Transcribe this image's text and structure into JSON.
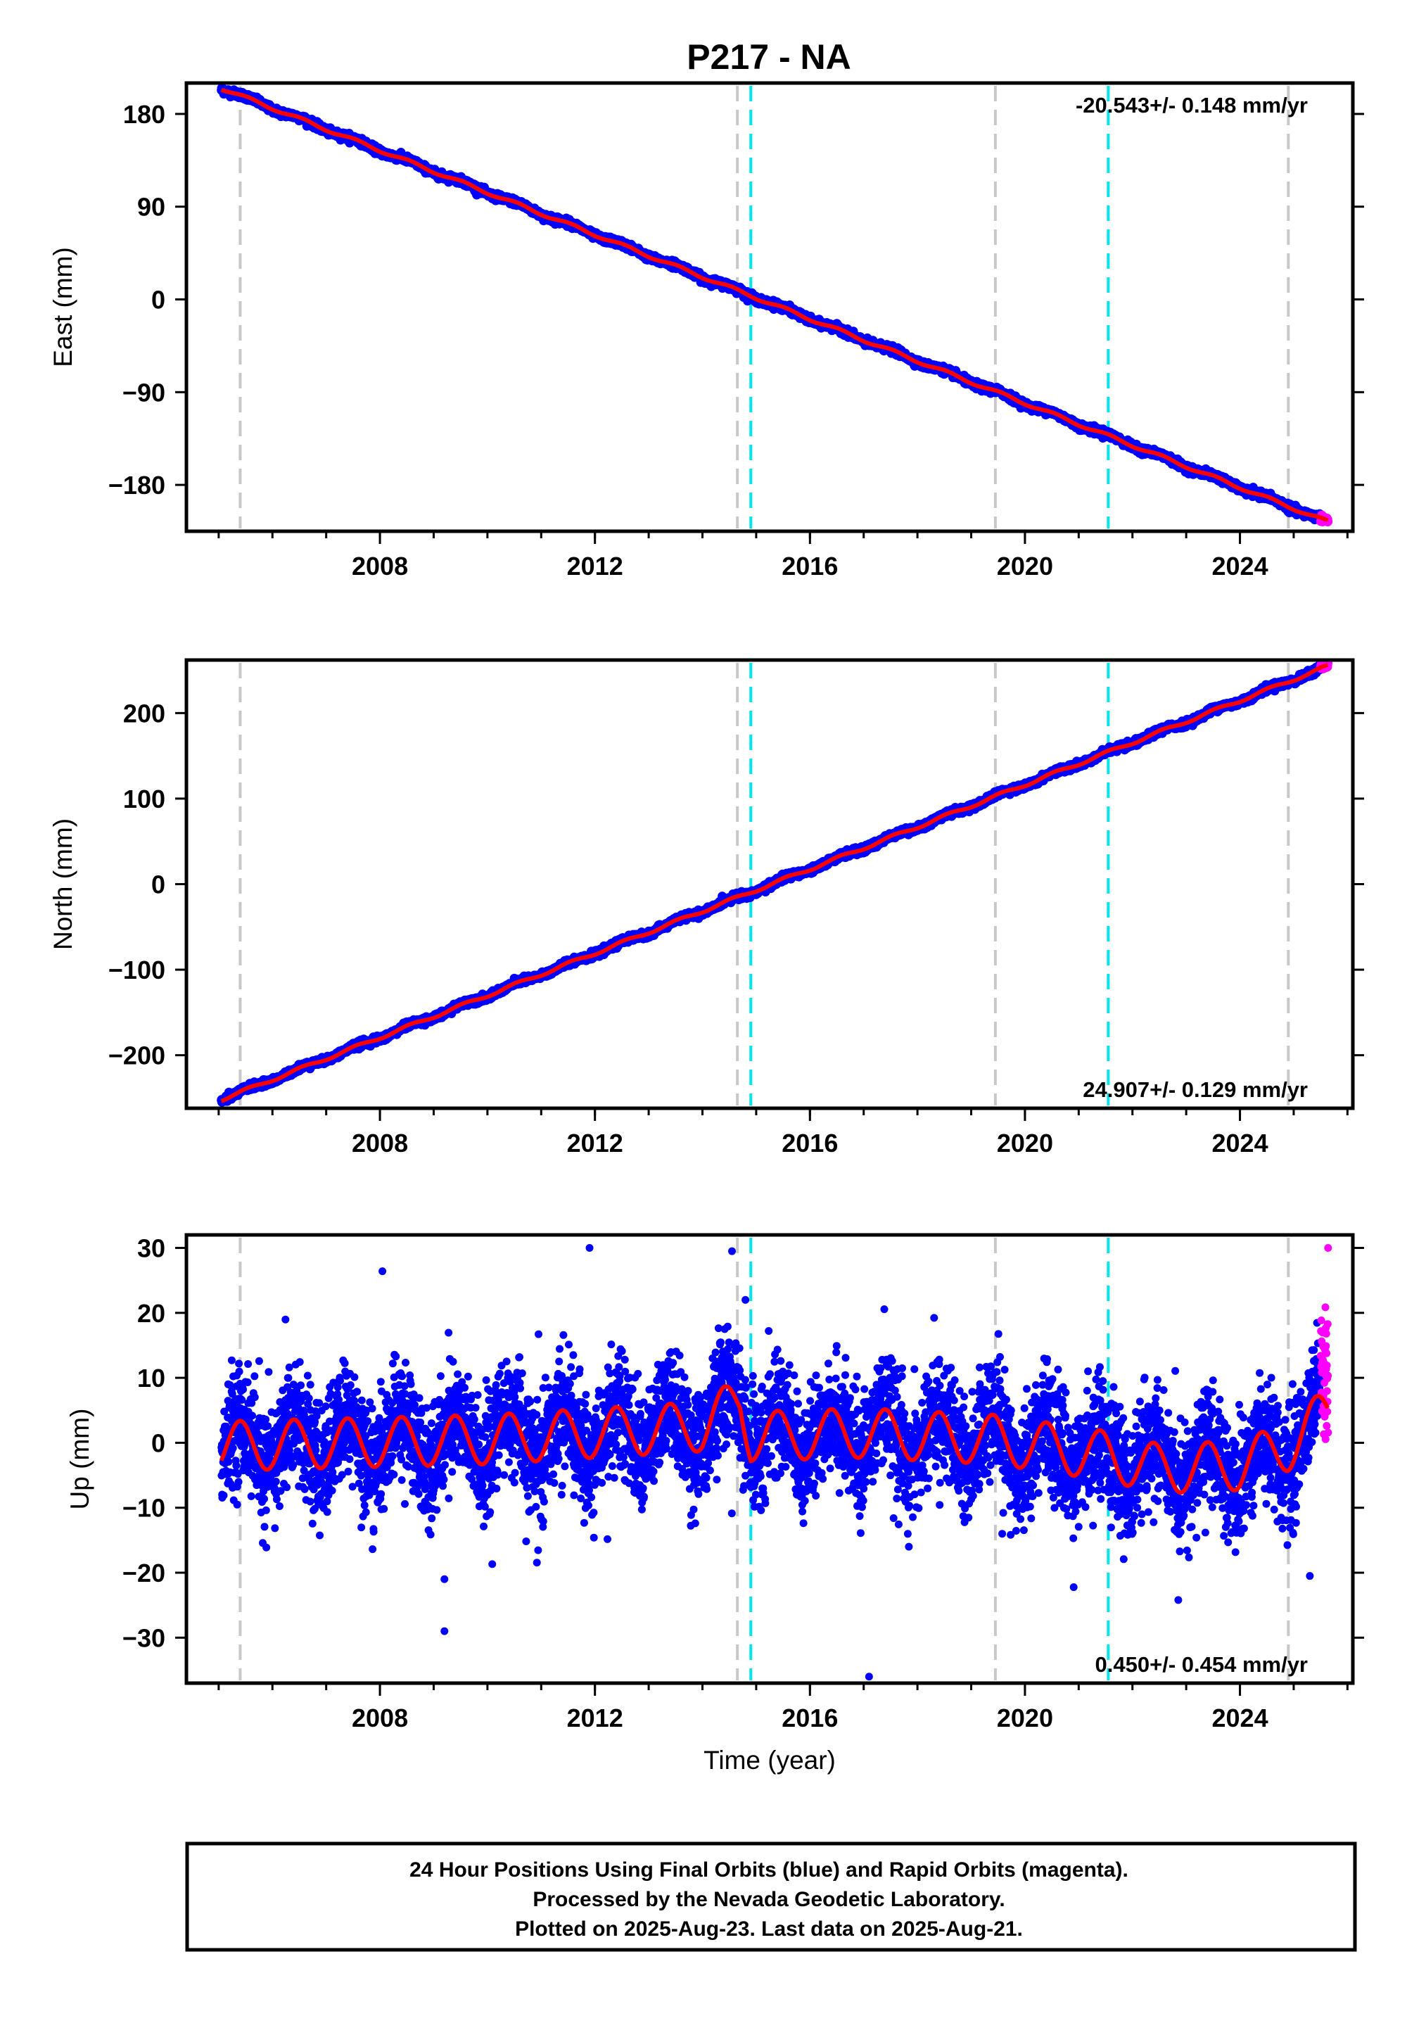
{
  "title": "P217 - NA",
  "footer": {
    "line1": "24 Hour Positions Using Final Orbits (blue) and Rapid Orbits (magenta).",
    "line2": "Processed by the Nevada Geodetic Laboratory.",
    "line3": "Plotted on 2025-Aug-23. Last data on 2025-Aug-21."
  },
  "colors": {
    "final_orbits": "#0000ff",
    "rapid_orbits": "#ff00ff",
    "model_fit": "#ff0000",
    "equipment_change_line": "#c8c8c8",
    "earthquake_line": "#00e5ee"
  },
  "chart_data": [
    {
      "type": "scatter",
      "component": "east",
      "ylabel": "East (mm)",
      "xlabel": "",
      "xlim": [
        2004.4,
        2026.1
      ],
      "ylim": [
        -225,
        210
      ],
      "xticks": [
        2008,
        2012,
        2016,
        2020,
        2024
      ],
      "yticks": [
        180,
        90,
        0,
        -90,
        -180
      ],
      "rate_label": "-20.543+/- 0.148 mm/yr",
      "rate_position": "top-right",
      "start_value": 205,
      "end_value": -216,
      "rate_mm_per_yr": -20.543,
      "seasonal_amplitude": 1.5,
      "noise_sd": 1.6,
      "vertical_lines": [
        {
          "x": 2005.4,
          "kind": "equipment"
        },
        {
          "x": 2014.65,
          "kind": "equipment"
        },
        {
          "x": 2014.9,
          "kind": "earthquake"
        },
        {
          "x": 2019.45,
          "kind": "equipment"
        },
        {
          "x": 2021.55,
          "kind": "earthquake"
        },
        {
          "x": 2024.9,
          "kind": "equipment"
        }
      ],
      "series": [
        {
          "name": "Final Orbits",
          "x_range": [
            2005.05,
            2025.5
          ]
        },
        {
          "name": "Rapid Orbits",
          "x_range": [
            2025.5,
            2025.64
          ]
        },
        {
          "name": "Model",
          "x_range": [
            2005.05,
            2025.64
          ]
        }
      ]
    },
    {
      "type": "scatter",
      "component": "north",
      "ylabel": "North (mm)",
      "xlabel": "",
      "xlim": [
        2004.4,
        2026.1
      ],
      "ylim": [
        -262,
        262
      ],
      "xticks": [
        2008,
        2012,
        2016,
        2020,
        2024
      ],
      "yticks": [
        200,
        100,
        0,
        -100,
        -200
      ],
      "rate_label": "24.907+/- 0.129 mm/yr",
      "rate_position": "bottom-right",
      "start_value": -252,
      "end_value": 255,
      "rate_mm_per_yr": 24.907,
      "seasonal_amplitude": 1.8,
      "noise_sd": 1.8,
      "vertical_lines": [
        {
          "x": 2005.4,
          "kind": "equipment"
        },
        {
          "x": 2014.65,
          "kind": "equipment"
        },
        {
          "x": 2014.9,
          "kind": "earthquake"
        },
        {
          "x": 2019.45,
          "kind": "equipment"
        },
        {
          "x": 2021.55,
          "kind": "earthquake"
        },
        {
          "x": 2024.9,
          "kind": "equipment"
        }
      ],
      "series": [
        {
          "name": "Final Orbits",
          "x_range": [
            2005.05,
            2025.5
          ]
        },
        {
          "name": "Rapid Orbits",
          "x_range": [
            2025.5,
            2025.64
          ]
        },
        {
          "name": "Model",
          "x_range": [
            2005.05,
            2025.64
          ]
        }
      ]
    },
    {
      "type": "scatter",
      "component": "up",
      "ylabel": "Up (mm)",
      "xlabel": "Time (year)",
      "xlim": [
        2004.4,
        2026.1
      ],
      "ylim": [
        -37,
        32
      ],
      "xticks": [
        2008,
        2012,
        2016,
        2020,
        2024
      ],
      "yticks": [
        30,
        20,
        10,
        0,
        -10,
        -20,
        -30
      ],
      "rate_label": "0.450+/- 0.454 mm/yr",
      "rate_position": "bottom-right",
      "seasonal_amplitude": 3.8,
      "noise_sd": 4.2,
      "model_trend": [
        {
          "x": 2005.05,
          "y": -0.5
        },
        {
          "x": 2010.0,
          "y": 0.5
        },
        {
          "x": 2014.0,
          "y": 2.5
        },
        {
          "x": 2014.7,
          "y": 6.5
        },
        {
          "x": 2014.9,
          "y": 1.0
        },
        {
          "x": 2017.0,
          "y": 1.5
        },
        {
          "x": 2019.45,
          "y": 0.5
        },
        {
          "x": 2021.5,
          "y": -2.0
        },
        {
          "x": 2022.5,
          "y": -4.0
        },
        {
          "x": 2024.0,
          "y": -3.5
        },
        {
          "x": 2024.9,
          "y": -0.5
        },
        {
          "x": 2025.64,
          "y": 5.0
        }
      ],
      "outliers": [
        {
          "x": 2011.9,
          "y": 30
        },
        {
          "x": 2014.55,
          "y": 29.5
        },
        {
          "x": 2014.8,
          "y": 22
        },
        {
          "x": 2009.2,
          "y": -21
        },
        {
          "x": 2009.2,
          "y": -29
        },
        {
          "x": 2017.1,
          "y": -36
        },
        {
          "x": 2025.3,
          "y": -20.5
        },
        {
          "x": 2025.64,
          "y": 30
        }
      ],
      "vertical_lines": [
        {
          "x": 2005.4,
          "kind": "equipment"
        },
        {
          "x": 2014.65,
          "kind": "equipment"
        },
        {
          "x": 2014.9,
          "kind": "earthquake"
        },
        {
          "x": 2019.45,
          "kind": "equipment"
        },
        {
          "x": 2021.55,
          "kind": "earthquake"
        },
        {
          "x": 2024.9,
          "kind": "equipment"
        }
      ],
      "series": [
        {
          "name": "Final Orbits",
          "x_range": [
            2005.05,
            2025.5
          ]
        },
        {
          "name": "Rapid Orbits",
          "x_range": [
            2025.5,
            2025.64
          ]
        },
        {
          "name": "Model",
          "x_range": [
            2005.05,
            2025.64
          ]
        }
      ]
    }
  ]
}
